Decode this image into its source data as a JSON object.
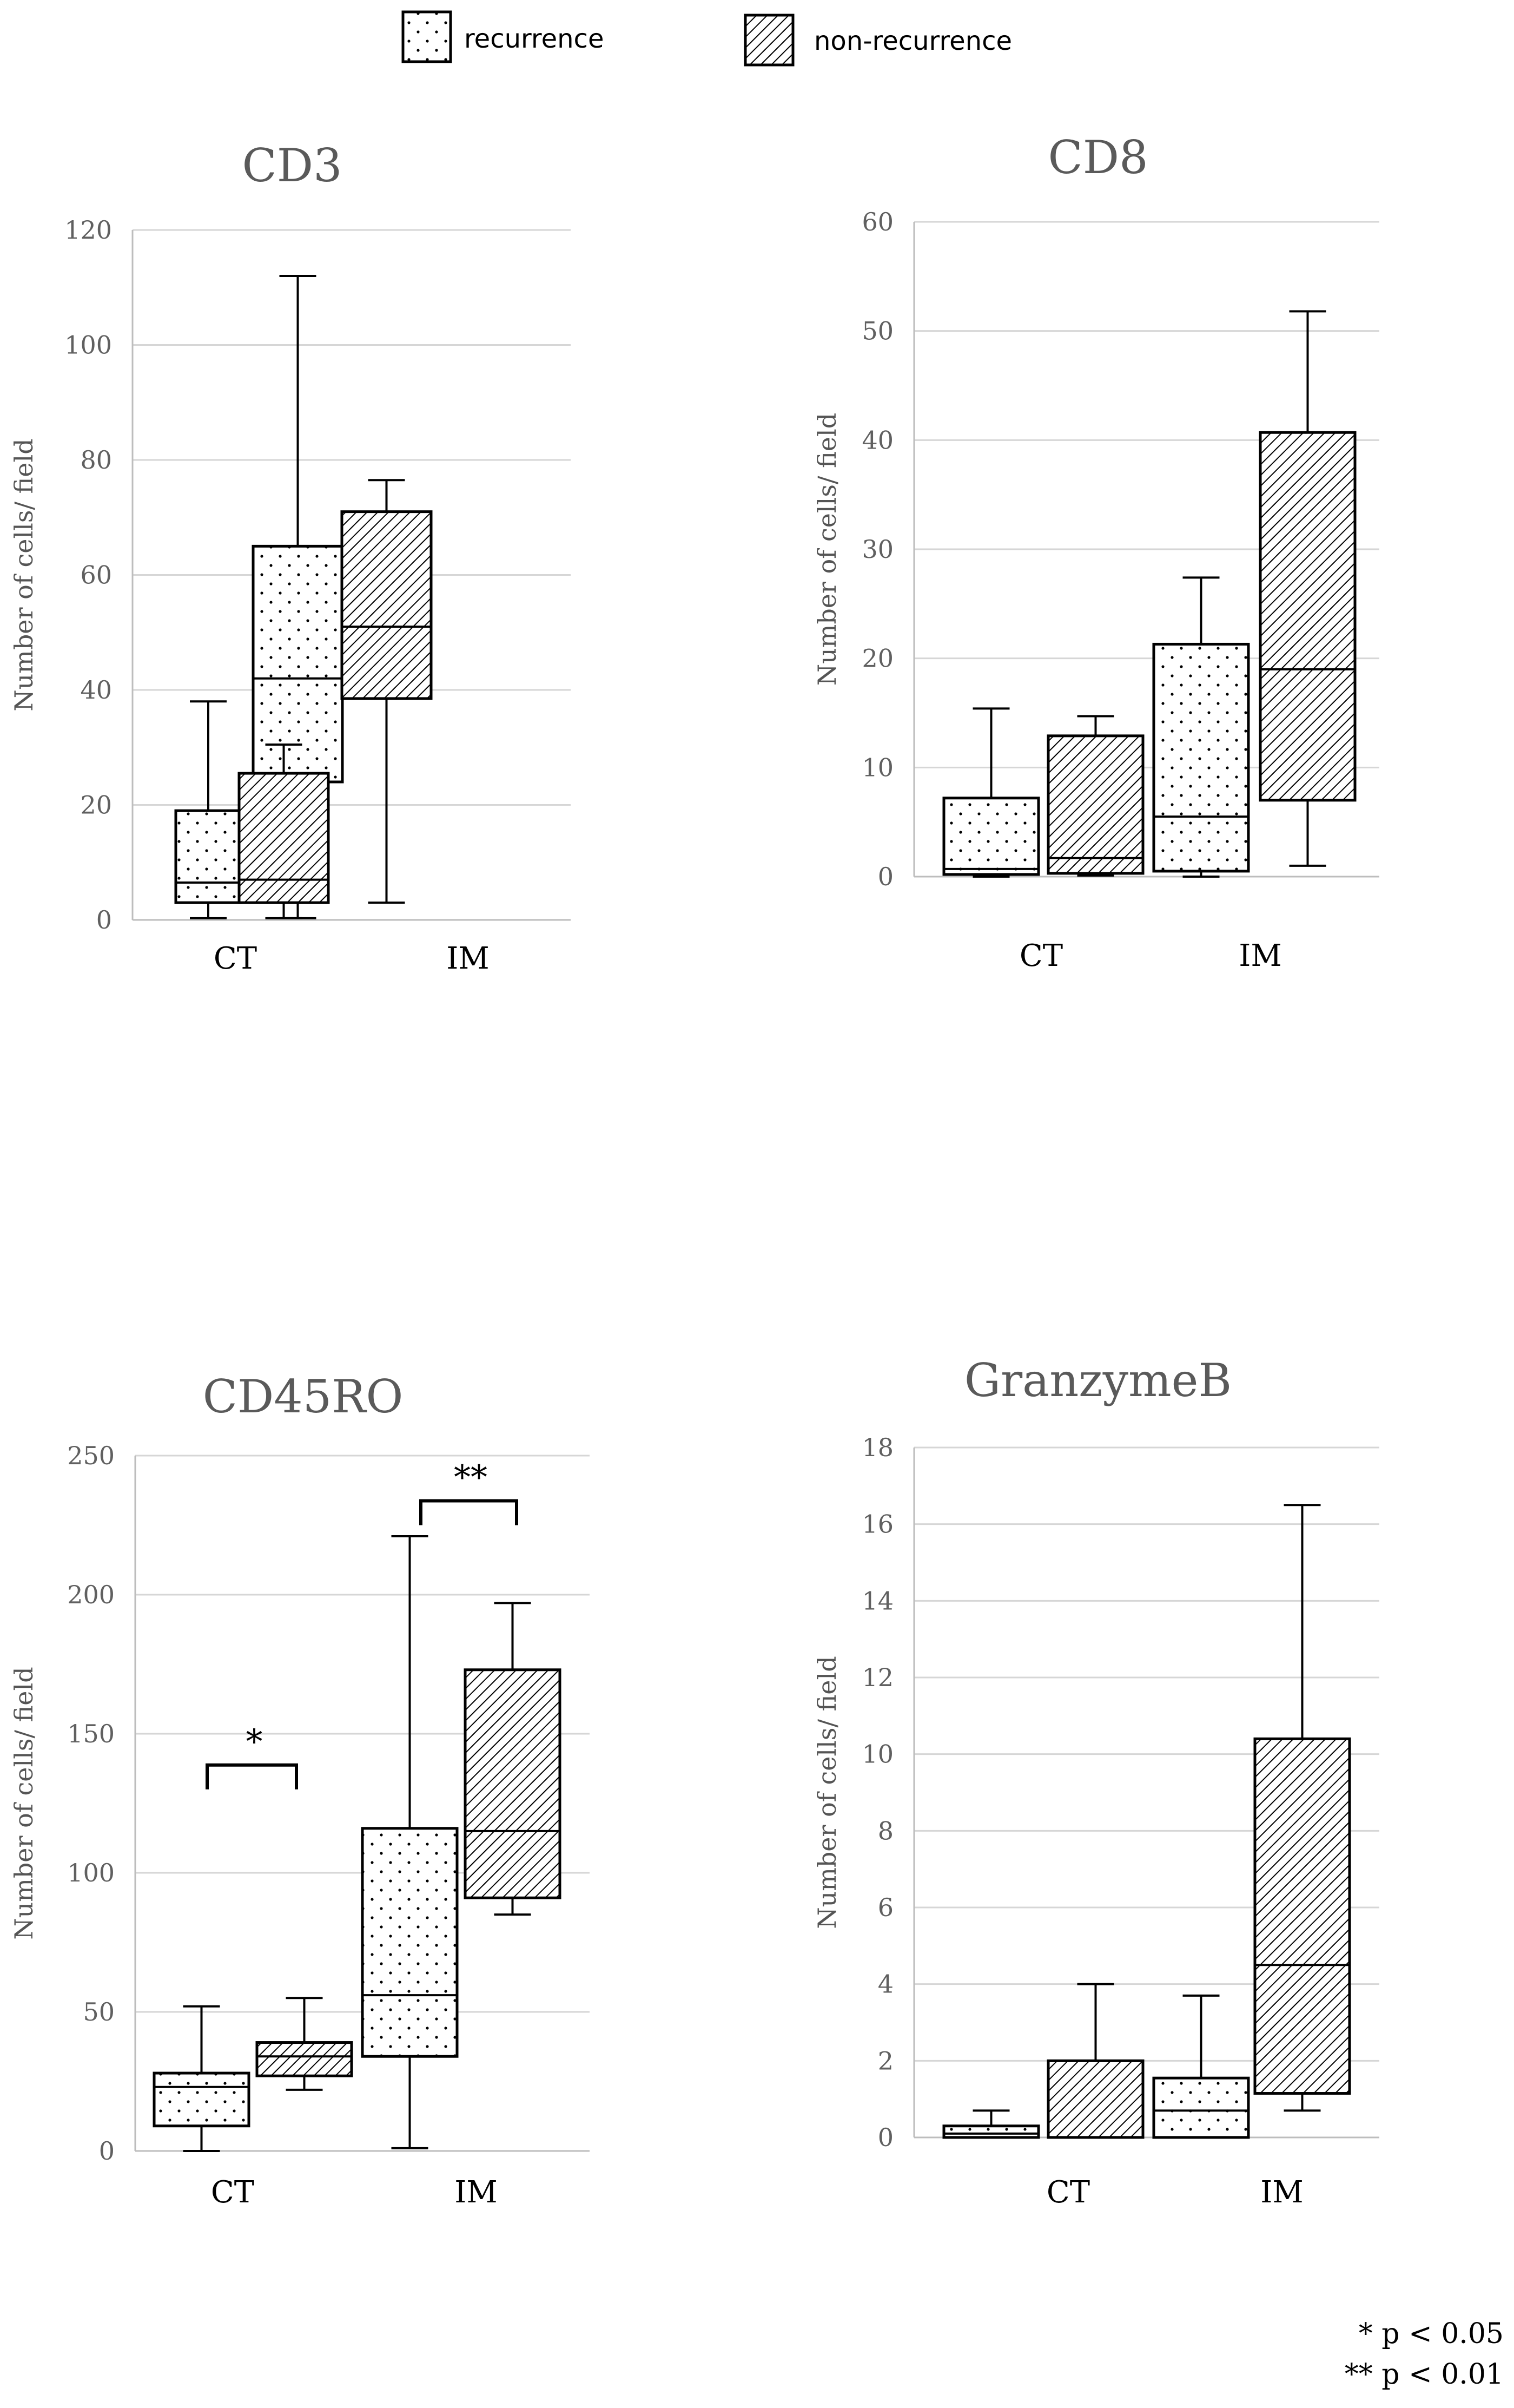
{
  "legend": [
    {
      "label": "recurrence",
      "pattern": "dots"
    },
    {
      "label": "non-recurrence",
      "pattern": "hatch"
    }
  ],
  "notes": [
    "* p < 0.05",
    "** p < 0.01"
  ],
  "chart_data": [
    {
      "type": "boxplot",
      "title": "CD3",
      "ylabel": "Number of cells/ field",
      "categories": [
        "CT",
        "IM"
      ],
      "ylim": [
        0,
        120
      ],
      "yticks": [
        0,
        20,
        40,
        60,
        80,
        100,
        120
      ],
      "series": [
        {
          "name": "recurrence",
          "boxes": [
            {
              "category": "CT",
              "min": 0.3,
              "q1": 3,
              "median": 6.5,
              "q3": 19,
              "max": 38
            },
            {
              "category": "IM",
              "min": 0.3,
              "q1": 24,
              "median": 42,
              "q3": 65,
              "max": 112
            }
          ]
        },
        {
          "name": "non-recurrence",
          "boxes": [
            {
              "category": "CT",
              "min": 0.3,
              "q1": 3,
              "median": 7,
              "q3": 25.5,
              "max": 30.5
            },
            {
              "category": "IM",
              "min": 3,
              "q1": 38.5,
              "median": 51,
              "q3": 71,
              "max": 76.5
            }
          ]
        }
      ],
      "significance": []
    },
    {
      "type": "boxplot",
      "title": "CD8",
      "ylabel": "Number of cells/ field",
      "categories": [
        "CT",
        "IM"
      ],
      "ylim": [
        0,
        60
      ],
      "yticks": [
        0,
        10,
        20,
        30,
        40,
        50,
        60
      ],
      "series": [
        {
          "name": "recurrence",
          "boxes": [
            {
              "category": "CT",
              "min": 0,
              "q1": 0.2,
              "median": 0.7,
              "q3": 7.2,
              "max": 15.4
            },
            {
              "category": "IM",
              "min": 0,
              "q1": 0.5,
              "median": 5.5,
              "q3": 21.3,
              "max": 27.4
            }
          ]
        },
        {
          "name": "non-recurrence",
          "boxes": [
            {
              "category": "CT",
              "min": 0.1,
              "q1": 0.3,
              "median": 1.7,
              "q3": 12.9,
              "max": 14.7
            },
            {
              "category": "IM",
              "min": 1,
              "q1": 7,
              "median": 19,
              "q3": 40.7,
              "max": 51.8
            }
          ]
        }
      ],
      "significance": []
    },
    {
      "type": "boxplot",
      "title": "CD45RO",
      "ylabel": "Number of cells/ field",
      "categories": [
        "CT",
        "IM"
      ],
      "ylim": [
        0,
        250
      ],
      "yticks": [
        0,
        50,
        100,
        150,
        200,
        250
      ],
      "series": [
        {
          "name": "recurrence",
          "boxes": [
            {
              "category": "CT",
              "min": 0,
              "q1": 9,
              "median": 23,
              "q3": 28,
              "max": 52
            },
            {
              "category": "IM",
              "min": 1,
              "q1": 34,
              "median": 56,
              "q3": 116,
              "max": 221
            }
          ]
        },
        {
          "name": "non-recurrence",
          "boxes": [
            {
              "category": "CT",
              "min": 22,
              "q1": 27,
              "median": 34,
              "q3": 39,
              "max": 55
            },
            {
              "category": "IM",
              "min": 85,
              "q1": 91,
              "median": 115,
              "q3": 173,
              "max": 197
            }
          ]
        }
      ],
      "significance": [
        {
          "category": "CT",
          "label": "*",
          "bracket_value": 130
        },
        {
          "category": "IM",
          "label": "**",
          "bracket_value": 225
        }
      ]
    },
    {
      "type": "boxplot",
      "title": "GranzymeB",
      "ylabel": "Number of cells/ field",
      "categories": [
        "CT",
        "IM"
      ],
      "ylim": [
        0,
        18
      ],
      "yticks": [
        0,
        2,
        4,
        6,
        8,
        10,
        12,
        14,
        16,
        18
      ],
      "series": [
        {
          "name": "recurrence",
          "boxes": [
            {
              "category": "CT",
              "min": 0,
              "q1": 0,
              "median": 0.1,
              "q3": 0.3,
              "max": 0.7
            },
            {
              "category": "IM",
              "min": 0,
              "q1": 0,
              "median": 0.7,
              "q3": 1.55,
              "max": 3.7
            }
          ]
        },
        {
          "name": "non-recurrence",
          "boxes": [
            {
              "category": "CT",
              "min": 0,
              "q1": 0,
              "median": 0,
              "q3": 2,
              "max": 4
            },
            {
              "category": "IM",
              "min": 0.7,
              "q1": 1.15,
              "median": 4.5,
              "q3": 10.4,
              "max": 16.5
            }
          ]
        }
      ],
      "significance": []
    }
  ]
}
